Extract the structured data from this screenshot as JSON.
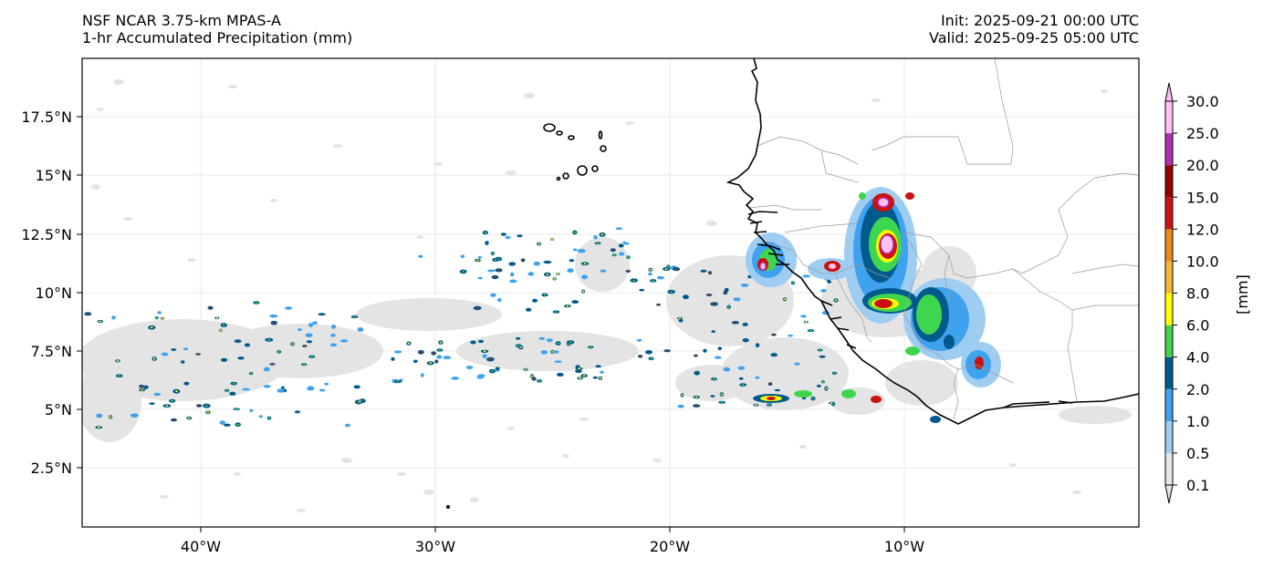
{
  "header": {
    "model": "NSF NCAR 3.75-km MPAS-A",
    "field": "1-hr Accumulated Precipitation (mm)",
    "init": "Init: 2025-09-21 00:00 UTC",
    "valid": "Valid: 2025-09-25 05:00 UTC"
  },
  "axes": {
    "lon_ticks": [
      "40°W",
      "30°W",
      "20°W",
      "10°W"
    ],
    "lat_ticks": [
      "17.5°N",
      "15°N",
      "12.5°N",
      "10°N",
      "7.5°N",
      "5°N",
      "2.5°N"
    ]
  },
  "colorbar": {
    "label": "[mm]",
    "levels": [
      "0.1",
      "0.5",
      "1.0",
      "2.0",
      "4.0",
      "6.0",
      "8.0",
      "10.0",
      "12.0",
      "15.0",
      "20.0",
      "25.0",
      "30.0"
    ],
    "colors": [
      "#e6e6e6",
      "#9fcdf2",
      "#3fa2ee",
      "#005a8c",
      "#3fd64f",
      "#ffff00",
      "#f7b733",
      "#ec8a20",
      "#cc1111",
      "#990000",
      "#b030b5",
      "#ffc0f5"
    ]
  }
}
